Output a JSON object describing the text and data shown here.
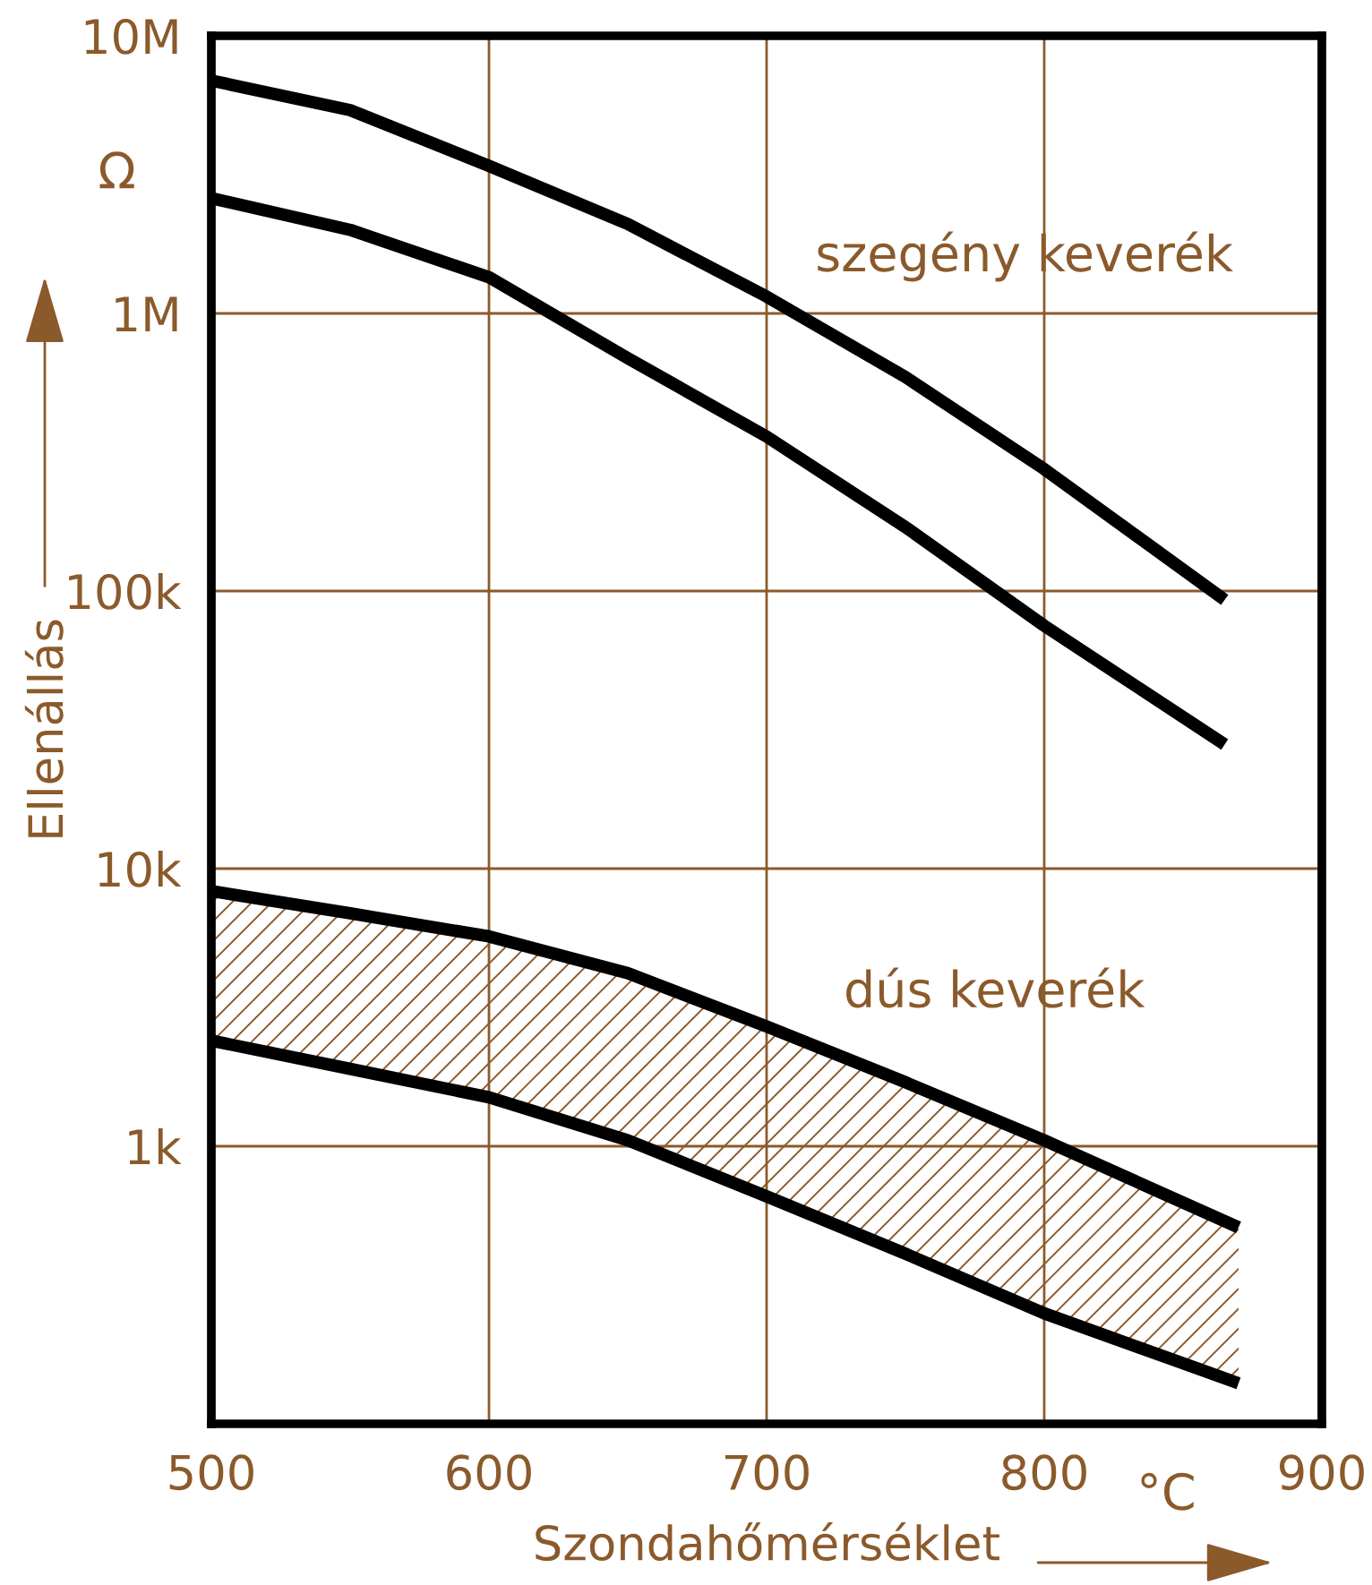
{
  "chart_data": {
    "type": "line",
    "xlabel": "Szondahőmérséklet",
    "ylabel": "Ellenállás",
    "annotations": [
      "szegény keverék",
      "dús keverék",
      "Ω",
      "°C"
    ],
    "log": "y",
    "xlim": [
      500,
      900
    ],
    "xticks": [
      500,
      600,
      700,
      800,
      900
    ],
    "ylim": [
      100,
      10000000
    ],
    "yticks": [
      {
        "value": 100,
        "label": null
      },
      {
        "value": 1000,
        "label": "1k"
      },
      {
        "value": 10000,
        "label": "10k"
      },
      {
        "value": 100000,
        "label": "100k"
      },
      {
        "value": 1000000,
        "label": "1M"
      },
      {
        "value": 10000000,
        "label": "10M"
      }
    ],
    "grid": true,
    "marker": "none",
    "line_style": "solid",
    "series": [
      {
        "color": "#000000",
        "x": [
          500,
          550,
          600,
          650,
          700,
          750,
          800,
          865
        ],
        "values": [
          6900000,
          5400000,
          3400000,
          2100000,
          1150000,
          590000,
          275000,
          93000
        ]
      },
      {
        "color": "#000000",
        "x": [
          500,
          550,
          600,
          650,
          700,
          750,
          800,
          865
        ],
        "values": [
          2600000,
          2000000,
          1350000,
          690000,
          360000,
          170000,
          75000,
          28000
        ]
      },
      {
        "color": "#000000",
        "x": [
          500,
          550,
          600,
          650,
          700,
          750,
          800,
          870
        ],
        "values": [
          8300,
          6900,
          5700,
          4200,
          2700,
          1700,
          1050,
          510
        ],
        "upper": [
          8300,
          6900,
          5700,
          4200,
          2700,
          1700,
          1050,
          510
        ],
        "lower": [
          2400,
          1900,
          1500,
          1050,
          660,
          410,
          250,
          140
        ]
      },
      {
        "color": "#000000",
        "x": [
          500,
          550,
          600,
          650,
          700,
          750,
          800,
          870
        ],
        "values": [
          2400,
          1900,
          1500,
          1050,
          660,
          410,
          250,
          140
        ]
      }
    ]
  }
}
